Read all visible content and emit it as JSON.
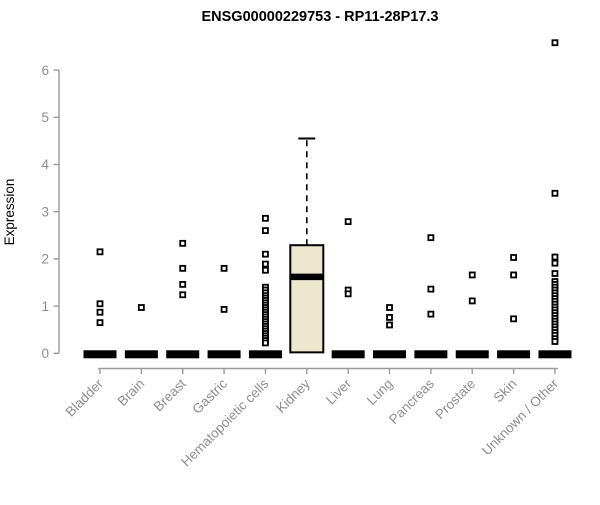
{
  "chart_data": {
    "type": "boxplot",
    "title": "ENSG00000229753 - RP11-28P17.3",
    "ylabel": "Expression",
    "xlabel": "",
    "ylim": [
      0,
      6.6
    ],
    "y_ticks": [
      "0",
      "1",
      "2",
      "3",
      "4",
      "5",
      "6"
    ],
    "grid": "off",
    "legend": "none",
    "categories": [
      "Bladder",
      "Brain",
      "Breast",
      "Gastric",
      "Hematopoietic cells",
      "Kidney",
      "Liver",
      "Lung",
      "Pancreas",
      "Prostate",
      "Skin",
      "Unknown / Other"
    ],
    "series": [
      {
        "name": "Bladder",
        "box": {
          "collapsed": true,
          "q1": 0,
          "median": 0,
          "q3": 0
        },
        "points": [
          2.15,
          1.05,
          0.87,
          0.65
        ]
      },
      {
        "name": "Brain",
        "box": {
          "collapsed": true,
          "q1": 0,
          "median": 0,
          "q3": 0
        },
        "points": [
          0.97
        ]
      },
      {
        "name": "Breast",
        "box": {
          "collapsed": true,
          "q1": 0,
          "median": 0,
          "q3": 0
        },
        "points": [
          2.33,
          1.8,
          1.46,
          1.24
        ]
      },
      {
        "name": "Gastric",
        "box": {
          "collapsed": true,
          "q1": 0,
          "median": 0,
          "q3": 0
        },
        "points": [
          1.8,
          0.93
        ]
      },
      {
        "name": "Hematopoietic cells",
        "box": {
          "collapsed": true,
          "q1": 0,
          "median": 0,
          "q3": 0
        },
        "points": [
          2.86,
          2.6,
          2.1,
          1.89,
          1.76,
          1.4,
          1.34,
          1.28,
          1.22,
          1.17,
          1.12,
          1.07,
          1.02,
          0.97,
          0.92,
          0.87,
          0.82,
          0.77,
          0.72,
          0.67,
          0.62,
          0.57,
          0.52,
          0.47,
          0.42,
          0.37,
          0.32,
          0.27,
          0.22
        ]
      },
      {
        "name": "Kidney",
        "box": {
          "collapsed": false,
          "q1": 0.02,
          "median": 1.62,
          "q3": 2.29,
          "whisker_high": 4.55
        },
        "points": []
      },
      {
        "name": "Liver",
        "box": {
          "collapsed": true,
          "q1": 0,
          "median": 0,
          "q3": 0
        },
        "points": [
          2.79,
          1.34,
          1.26
        ]
      },
      {
        "name": "Lung",
        "box": {
          "collapsed": true,
          "q1": 0,
          "median": 0,
          "q3": 0
        },
        "points": [
          0.97,
          0.76,
          0.6
        ]
      },
      {
        "name": "Pancreas",
        "box": {
          "collapsed": true,
          "q1": 0,
          "median": 0,
          "q3": 0
        },
        "points": [
          2.45,
          1.36,
          0.83
        ]
      },
      {
        "name": "Prostate",
        "box": {
          "collapsed": true,
          "q1": 0,
          "median": 0,
          "q3": 0
        },
        "points": [
          1.66,
          1.11
        ]
      },
      {
        "name": "Skin",
        "box": {
          "collapsed": true,
          "q1": 0,
          "median": 0,
          "q3": 0
        },
        "points": [
          2.03,
          1.66,
          0.73
        ]
      },
      {
        "name": "Unknown / Other",
        "box": {
          "collapsed": true,
          "q1": 0,
          "median": 0,
          "q3": 0
        },
        "points": [
          6.58,
          3.39,
          2.04,
          1.91,
          1.69,
          1.52,
          1.46,
          1.4,
          1.34,
          1.28,
          1.22,
          1.16,
          1.1,
          1.04,
          0.98,
          0.92,
          0.86,
          0.8,
          0.74,
          0.68,
          0.62,
          0.56,
          0.5,
          0.44,
          0.38,
          0.31,
          0.25
        ]
      }
    ],
    "colors": {
      "box_fill": "#EDE7CD",
      "box_border": "#000000",
      "axis_line": "#9b9b9b",
      "axis_text": "#8e8e8e",
      "point_stroke": "#000000",
      "point_fill": "#ffffff",
      "title_color": "#000000"
    }
  }
}
